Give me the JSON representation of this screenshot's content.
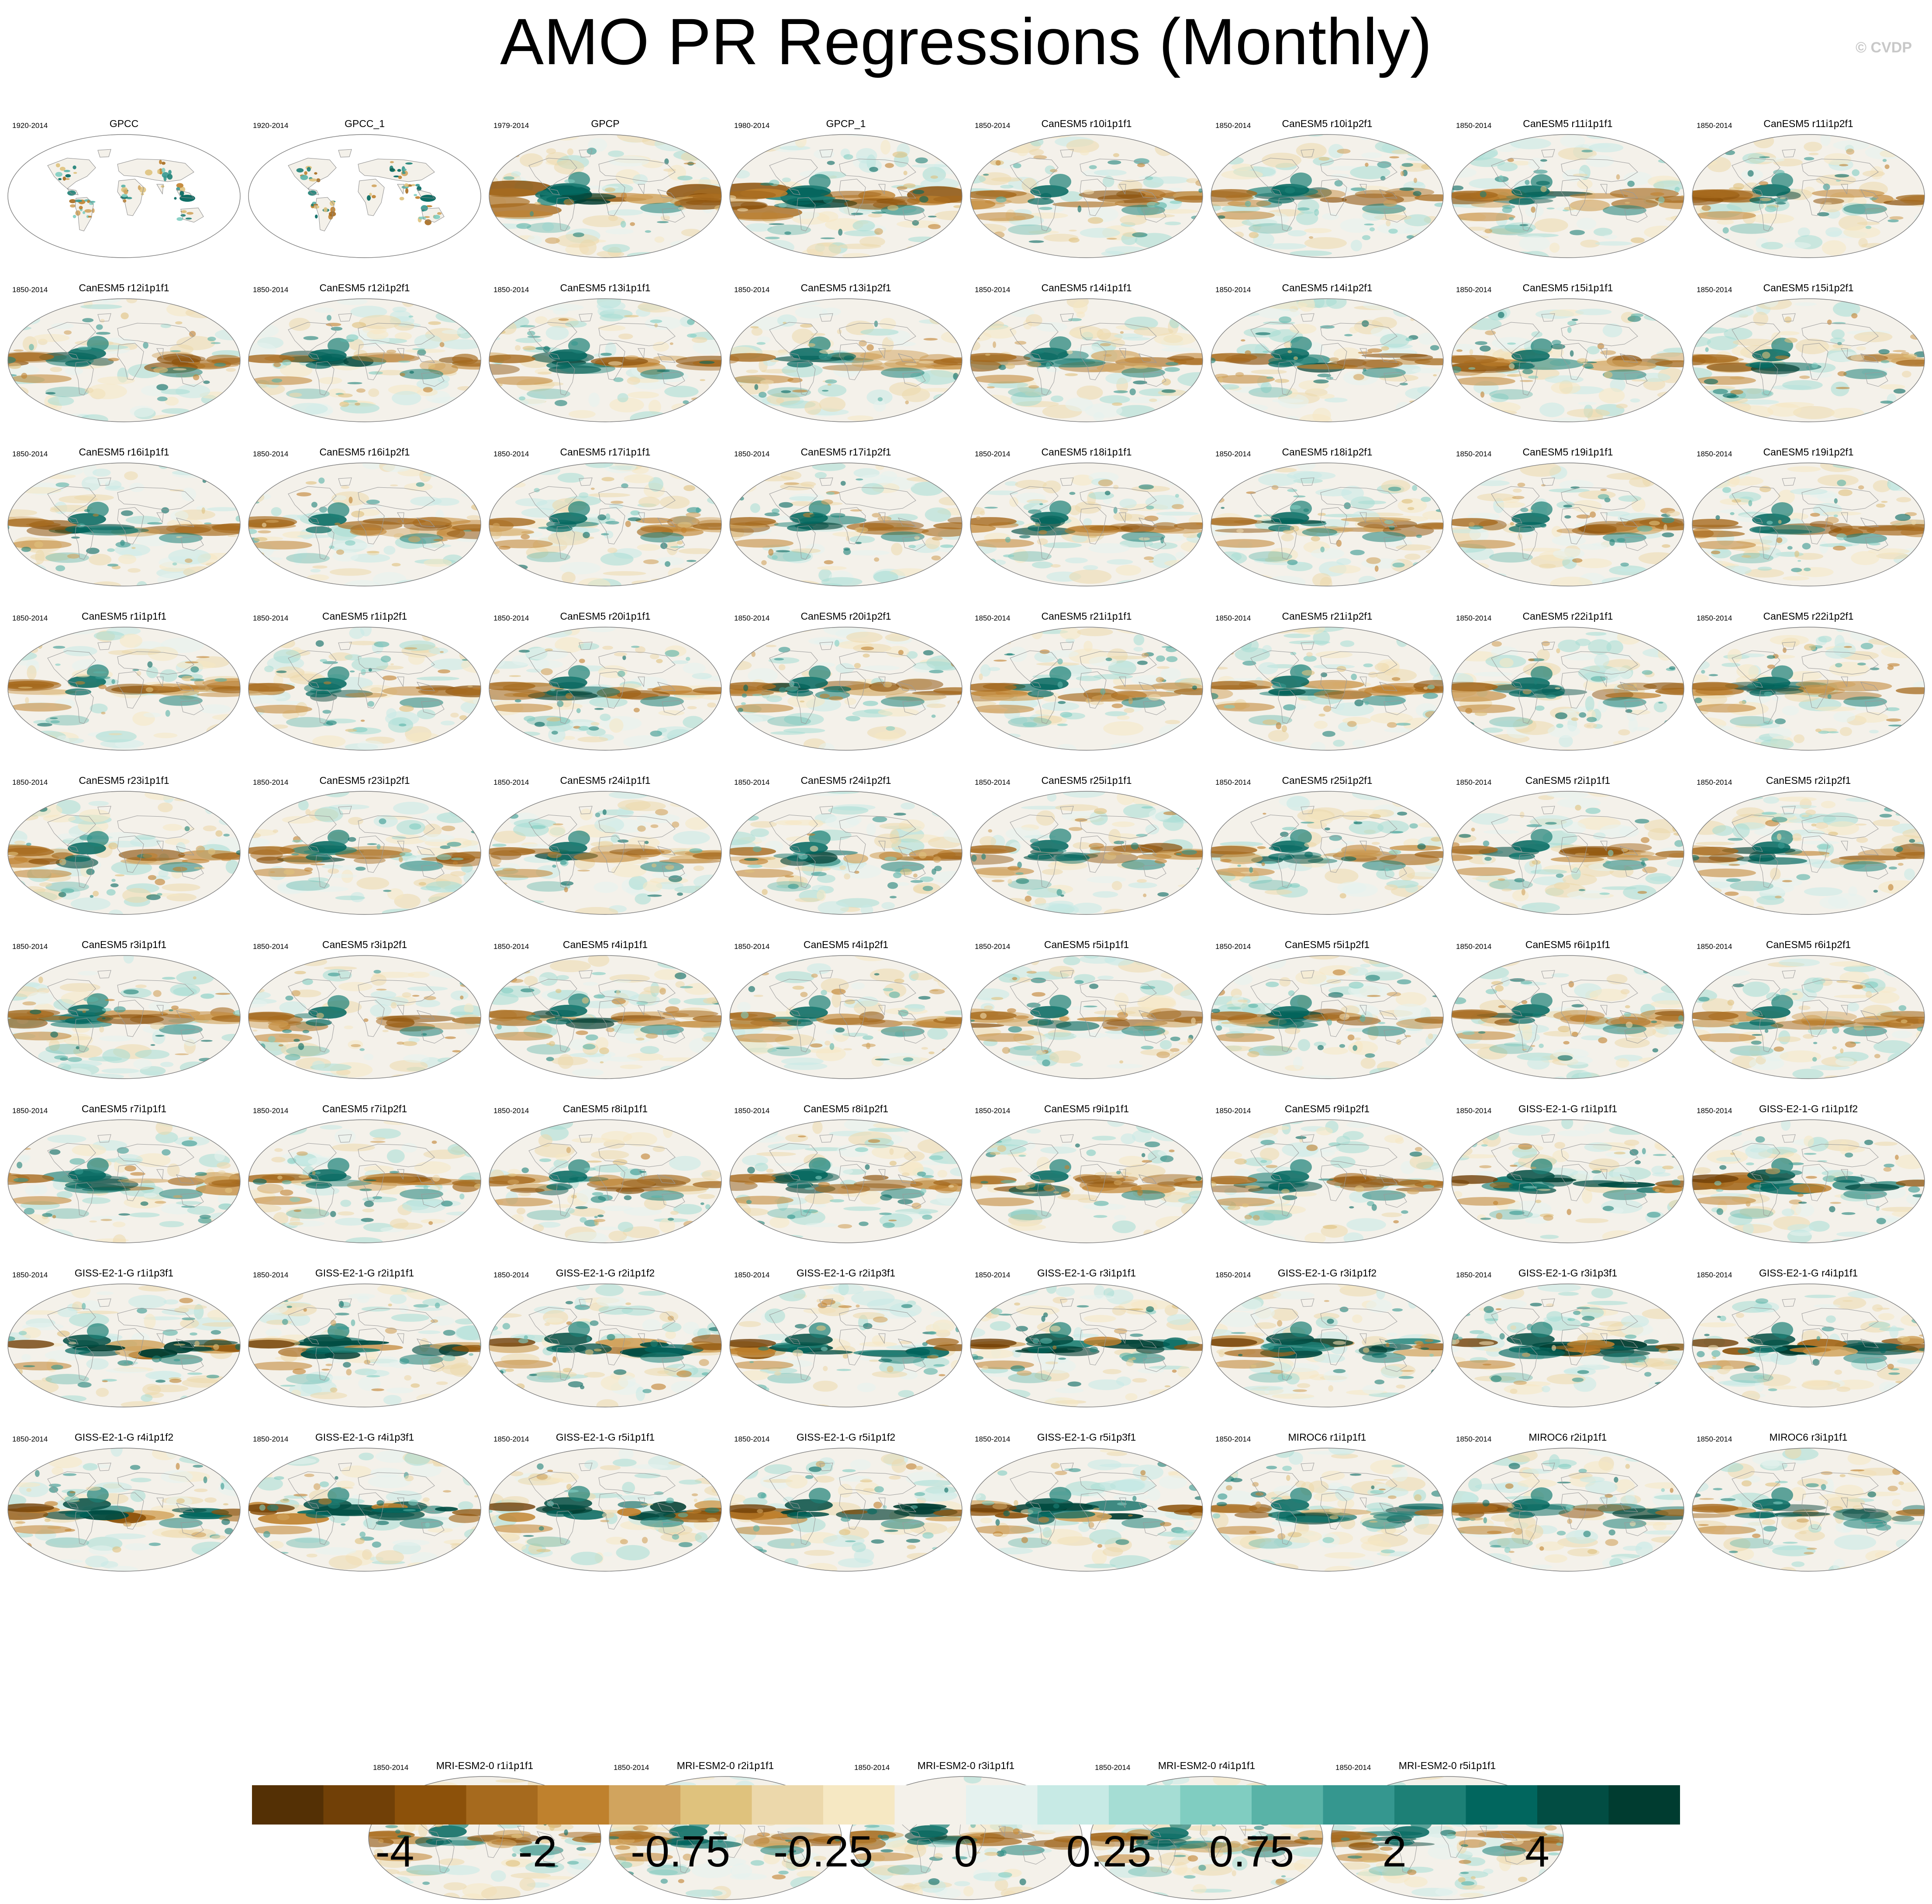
{
  "title": "AMO PR Regressions (Monthly)",
  "copyright": "© CVDP",
  "colorbar": {
    "colors": [
      "#543005",
      "#714007",
      "#8c510a",
      "#a66a1e",
      "#bf812d",
      "#d1a45e",
      "#dfc27d",
      "#ecd8ab",
      "#f6e8c3",
      "#f4f1ea",
      "#e5f2ef",
      "#c7eae5",
      "#a5ddd4",
      "#80cdc1",
      "#59b3a7",
      "#35978f",
      "#1d8076",
      "#01665e",
      "#024d43",
      "#003c30"
    ],
    "labels": [
      {
        "text": "-4",
        "boundary": 2
      },
      {
        "text": "-2",
        "boundary": 4
      },
      {
        "text": "-0.75",
        "boundary": 6
      },
      {
        "text": "-0.25",
        "boundary": 8
      },
      {
        "text": "0",
        "boundary": 10
      },
      {
        "text": "0.25",
        "boundary": 12
      },
      {
        "text": "0.75",
        "boundary": 14
      },
      {
        "text": "2",
        "boundary": 16
      },
      {
        "text": "4",
        "boundary": 18
      }
    ]
  },
  "panels": [
    {
      "name": "GPCC",
      "years": "1920-2014",
      "style": "land"
    },
    {
      "name": "GPCC_1",
      "years": "1920-2014",
      "style": "land"
    },
    {
      "name": "GPCP",
      "years": "1979-2014",
      "style": "obs"
    },
    {
      "name": "GPCP_1",
      "years": "1980-2014",
      "style": "obs"
    },
    {
      "name": "CanESM5 r10i1p1f1",
      "years": "1850-2014",
      "style": "can"
    },
    {
      "name": "CanESM5 r10i1p2f1",
      "years": "1850-2014",
      "style": "can"
    },
    {
      "name": "CanESM5 r11i1p1f1",
      "years": "1850-2014",
      "style": "can"
    },
    {
      "name": "CanESM5 r11i1p2f1",
      "years": "1850-2014",
      "style": "can"
    },
    {
      "name": "CanESM5 r12i1p1f1",
      "years": "1850-2014",
      "style": "can"
    },
    {
      "name": "CanESM5 r12i1p2f1",
      "years": "1850-2014",
      "style": "can"
    },
    {
      "name": "CanESM5 r13i1p1f1",
      "years": "1850-2014",
      "style": "can"
    },
    {
      "name": "CanESM5 r13i1p2f1",
      "years": "1850-2014",
      "style": "can"
    },
    {
      "name": "CanESM5 r14i1p1f1",
      "years": "1850-2014",
      "style": "can"
    },
    {
      "name": "CanESM5 r14i1p2f1",
      "years": "1850-2014",
      "style": "can"
    },
    {
      "name": "CanESM5 r15i1p1f1",
      "years": "1850-2014",
      "style": "can"
    },
    {
      "name": "CanESM5 r15i1p2f1",
      "years": "1850-2014",
      "style": "can"
    },
    {
      "name": "CanESM5 r16i1p1f1",
      "years": "1850-2014",
      "style": "can"
    },
    {
      "name": "CanESM5 r16i1p2f1",
      "years": "1850-2014",
      "style": "can"
    },
    {
      "name": "CanESM5 r17i1p1f1",
      "years": "1850-2014",
      "style": "can"
    },
    {
      "name": "CanESM5 r17i1p2f1",
      "years": "1850-2014",
      "style": "can"
    },
    {
      "name": "CanESM5 r18i1p1f1",
      "years": "1850-2014",
      "style": "can"
    },
    {
      "name": "CanESM5 r18i1p2f1",
      "years": "1850-2014",
      "style": "can"
    },
    {
      "name": "CanESM5 r19i1p1f1",
      "years": "1850-2014",
      "style": "can"
    },
    {
      "name": "CanESM5 r19i1p2f1",
      "years": "1850-2014",
      "style": "can"
    },
    {
      "name": "CanESM5 r1i1p1f1",
      "years": "1850-2014",
      "style": "can"
    },
    {
      "name": "CanESM5 r1i1p2f1",
      "years": "1850-2014",
      "style": "can"
    },
    {
      "name": "CanESM5 r20i1p1f1",
      "years": "1850-2014",
      "style": "can"
    },
    {
      "name": "CanESM5 r20i1p2f1",
      "years": "1850-2014",
      "style": "can"
    },
    {
      "name": "CanESM5 r21i1p1f1",
      "years": "1850-2014",
      "style": "can"
    },
    {
      "name": "CanESM5 r21i1p2f1",
      "years": "1850-2014",
      "style": "can"
    },
    {
      "name": "CanESM5 r22i1p1f1",
      "years": "1850-2014",
      "style": "can"
    },
    {
      "name": "CanESM5 r22i1p2f1",
      "years": "1850-2014",
      "style": "can"
    },
    {
      "name": "CanESM5 r23i1p1f1",
      "years": "1850-2014",
      "style": "can"
    },
    {
      "name": "CanESM5 r23i1p2f1",
      "years": "1850-2014",
      "style": "can"
    },
    {
      "name": "CanESM5 r24i1p1f1",
      "years": "1850-2014",
      "style": "can"
    },
    {
      "name": "CanESM5 r24i1p2f1",
      "years": "1850-2014",
      "style": "can"
    },
    {
      "name": "CanESM5 r25i1p1f1",
      "years": "1850-2014",
      "style": "can"
    },
    {
      "name": "CanESM5 r25i1p2f1",
      "years": "1850-2014",
      "style": "can"
    },
    {
      "name": "CanESM5 r2i1p1f1",
      "years": "1850-2014",
      "style": "can"
    },
    {
      "name": "CanESM5 r2i1p2f1",
      "years": "1850-2014",
      "style": "can"
    },
    {
      "name": "CanESM5 r3i1p1f1",
      "years": "1850-2014",
      "style": "can"
    },
    {
      "name": "CanESM5 r3i1p2f1",
      "years": "1850-2014",
      "style": "can"
    },
    {
      "name": "CanESM5 r4i1p1f1",
      "years": "1850-2014",
      "style": "can"
    },
    {
      "name": "CanESM5 r4i1p2f1",
      "years": "1850-2014",
      "style": "can"
    },
    {
      "name": "CanESM5 r5i1p1f1",
      "years": "1850-2014",
      "style": "can"
    },
    {
      "name": "CanESM5 r5i1p2f1",
      "years": "1850-2014",
      "style": "can"
    },
    {
      "name": "CanESM5 r6i1p1f1",
      "years": "1850-2014",
      "style": "can"
    },
    {
      "name": "CanESM5 r6i1p2f1",
      "years": "1850-2014",
      "style": "can"
    },
    {
      "name": "CanESM5 r7i1p1f1",
      "years": "1850-2014",
      "style": "can"
    },
    {
      "name": "CanESM5 r7i1p2f1",
      "years": "1850-2014",
      "style": "can"
    },
    {
      "name": "CanESM5 r8i1p1f1",
      "years": "1850-2014",
      "style": "can"
    },
    {
      "name": "CanESM5 r8i1p2f1",
      "years": "1850-2014",
      "style": "can"
    },
    {
      "name": "CanESM5 r9i1p1f1",
      "years": "1850-2014",
      "style": "can"
    },
    {
      "name": "CanESM5 r9i1p2f1",
      "years": "1850-2014",
      "style": "can"
    },
    {
      "name": "GISS-E2-1-G r1i1p1f1",
      "years": "1850-2014",
      "style": "giss"
    },
    {
      "name": "GISS-E2-1-G r1i1p1f2",
      "years": "1850-2014",
      "style": "giss"
    },
    {
      "name": "GISS-E2-1-G r1i1p3f1",
      "years": "1850-2014",
      "style": "giss"
    },
    {
      "name": "GISS-E2-1-G r2i1p1f1",
      "years": "1850-2014",
      "style": "giss"
    },
    {
      "name": "GISS-E2-1-G r2i1p1f2",
      "years": "1850-2014",
      "style": "giss"
    },
    {
      "name": "GISS-E2-1-G r2i1p3f1",
      "years": "1850-2014",
      "style": "giss"
    },
    {
      "name": "GISS-E2-1-G r3i1p1f1",
      "years": "1850-2014",
      "style": "giss"
    },
    {
      "name": "GISS-E2-1-G r3i1p1f2",
      "years": "1850-2014",
      "style": "giss"
    },
    {
      "name": "GISS-E2-1-G r3i1p3f1",
      "years": "1850-2014",
      "style": "giss"
    },
    {
      "name": "GISS-E2-1-G r4i1p1f1",
      "years": "1850-2014",
      "style": "giss"
    },
    {
      "name": "GISS-E2-1-G r4i1p1f2",
      "years": "1850-2014",
      "style": "giss"
    },
    {
      "name": "GISS-E2-1-G r4i1p3f1",
      "years": "1850-2014",
      "style": "giss"
    },
    {
      "name": "GISS-E2-1-G r5i1p1f1",
      "years": "1850-2014",
      "style": "giss"
    },
    {
      "name": "GISS-E2-1-G r5i1p1f2",
      "years": "1850-2014",
      "style": "giss"
    },
    {
      "name": "GISS-E2-1-G r5i1p3f1",
      "years": "1850-2014",
      "style": "giss"
    },
    {
      "name": "MIROC6 r1i1p1f1",
      "years": "1850-2014",
      "style": "miroc"
    },
    {
      "name": "MIROC6 r2i1p1f1",
      "years": "1850-2014",
      "style": "miroc"
    },
    {
      "name": "MIROC6 r3i1p1f1",
      "years": "1850-2014",
      "style": "miroc"
    },
    {
      "name": "MRI-ESM2-0 r1i1p1f1",
      "years": "1850-2014",
      "style": "mri"
    },
    {
      "name": "MRI-ESM2-0 r2i1p1f1",
      "years": "1850-2014",
      "style": "mri"
    },
    {
      "name": "MRI-ESM2-0 r3i1p1f1",
      "years": "1850-2014",
      "style": "mri"
    },
    {
      "name": "MRI-ESM2-0 r4i1p1f1",
      "years": "1850-2014",
      "style": "mri"
    },
    {
      "name": "MRI-ESM2-0 r5i1p1f1",
      "years": "1850-2014",
      "style": "mri"
    }
  ]
}
